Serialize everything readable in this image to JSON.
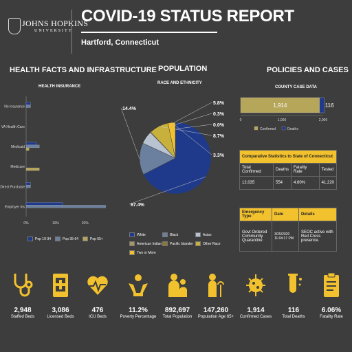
{
  "header": {
    "logo_name": "JOHNS HOPKINS",
    "logo_sub": "UNIVERSITY",
    "title": "COVID-19 STATUS REPORT",
    "location": "Hartford,  Connecticut"
  },
  "health": {
    "title": "HEALTH FACTS AND INFRASTRUCTURE",
    "subtitle": "HEALTH INSURANCE"
  },
  "population": {
    "title": "POPULATION",
    "subtitle": "RACE AND ETHNICITY"
  },
  "policies": {
    "title": "POLICIES AND CASES",
    "subtitle": "COUNTY CASE DATA"
  },
  "colors": {
    "background": "#3d3d3d",
    "accent": "#f2c12e",
    "navy": "#1f3a8a",
    "slate": "#6b7f9e",
    "khaki": "#b6a65a"
  },
  "chart_data": [
    {
      "type": "bar",
      "orientation": "horizontal",
      "title": "HEALTH INSURANCE",
      "categories": [
        "No Insurance",
        "VA Health Care",
        "Medicaid",
        "Medicare",
        "Direct Purchase",
        "Employer Ins"
      ],
      "series": [
        {
          "name": "Pop 19-34",
          "color": "#1f3a8a",
          "values": [
            1.5,
            0,
            3.5,
            0,
            1.5,
            12.5
          ]
        },
        {
          "name": "Pop 35-64",
          "color": "#6b7f9e",
          "values": [
            1.5,
            0,
            4.5,
            0,
            1.5,
            27
          ]
        },
        {
          "name": "Pop 65+",
          "color": "#b6a65a",
          "values": [
            0,
            0,
            1,
            4.5,
            0,
            0
          ]
        }
      ],
      "x_ticks": [
        "0%",
        "10%",
        "20%"
      ],
      "xlim": [
        0,
        28
      ],
      "grid": false,
      "legend": "bottom"
    },
    {
      "type": "pie",
      "title": "RACE AND ETHNICITY",
      "slices": [
        {
          "name": "White",
          "value": 67.4,
          "label": "67.4%",
          "color": "#1f3a8a"
        },
        {
          "name": "Black",
          "value": 14.4,
          "label": "14.4%",
          "color": "#6b7f9e"
        },
        {
          "name": "Asian",
          "value": 5.8,
          "label": "5.8%",
          "color": "#b7c3d0"
        },
        {
          "name": "American Indian",
          "value": 0.3,
          "label": "0.3%",
          "color": "#a59a66"
        },
        {
          "name": "Pacific Islander",
          "value": 0.0,
          "label": "0.0%",
          "color": "#8a7a2a"
        },
        {
          "name": "Other Race",
          "value": 8.7,
          "label": "8.7%",
          "color": "#c8b03c"
        },
        {
          "name": "Two or More",
          "value": 3.3,
          "label": "3.3%",
          "color": "#f2c12e"
        }
      ],
      "legend": "bottom"
    },
    {
      "type": "bar",
      "orientation": "horizontal",
      "stacked": true,
      "title": "COUNTY CASE DATA",
      "series": [
        {
          "name": "Confirmed",
          "value": 1914,
          "label": "1,914",
          "color": "#b6a65a"
        },
        {
          "name": "Deaths",
          "value": 116,
          "label": "116",
          "color": "#1f3a8a"
        }
      ],
      "x_ticks": [
        "0",
        "1,000",
        "2,000"
      ],
      "xlim": [
        0,
        2000
      ],
      "legend": "bottom"
    }
  ],
  "state_table": {
    "title": "Comparative Statistics to State of Connecticut",
    "headers": [
      "Total Confirmed",
      "Deaths",
      "Fatality Rate",
      "Tested"
    ],
    "values": [
      "12,035",
      "554",
      "4.60%",
      "41,220"
    ]
  },
  "policy_table": {
    "headers": [
      "Emergency Type",
      "Date",
      "Details"
    ],
    "row": [
      "Govt Ordered Community Quarantine",
      "3/25/2020 11:04:17 PM",
      "SEOC active with Red Cross presence."
    ]
  },
  "kpis": [
    {
      "value": "2,948",
      "label": "Staffed Beds",
      "icon": "stethoscope-icon"
    },
    {
      "value": "3,086",
      "label": "Licensed Beds",
      "icon": "medical-id-icon"
    },
    {
      "value": "476",
      "label": "ICU Beds",
      "icon": "heart-pulse-icon"
    },
    {
      "value": "11.2%",
      "label": "Poverty Percentage",
      "icon": "hands-icon"
    },
    {
      "value": "892,697",
      "label": "Total Population",
      "icon": "people-icon"
    },
    {
      "value": "147,260",
      "label": "Population Age 65+",
      "icon": "elderly-icon"
    },
    {
      "value": "1,914",
      "label": "Confirmed Cases",
      "icon": "virus-icon"
    },
    {
      "value": "116",
      "label": "Total Deaths",
      "icon": "test-tube-icon"
    },
    {
      "value": "6.06%",
      "label": "Fatality Rate",
      "icon": "clipboard-icon"
    }
  ]
}
